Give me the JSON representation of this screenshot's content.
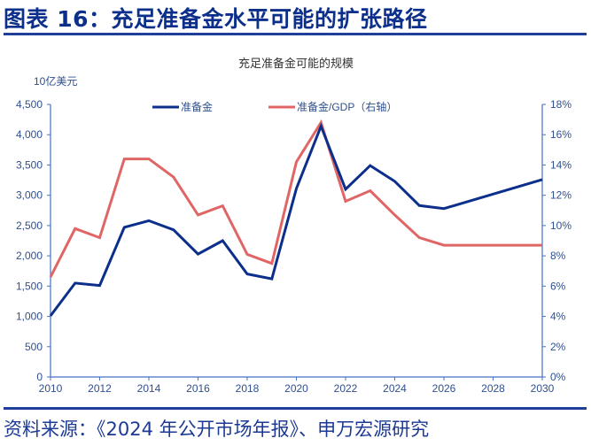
{
  "figure": {
    "title": "图表 16：充足准备金水平可能的扩张路径",
    "source": "资料来源：《2024 年公开市场年报》、申万宏源研究"
  },
  "colors": {
    "title": "#0b2f8a",
    "rule": "#1f3f9a",
    "axis": "#4472c4",
    "tick_text": "#2f4f8f",
    "series_reserves": "#0b2f8a",
    "series_ratio": "#e06666"
  },
  "chart_data": {
    "type": "line",
    "title": "充足准备金可能的规模",
    "ylabel_left": "10亿美元",
    "ylabel_right": "",
    "xlabel": "",
    "x": [
      2010,
      2011,
      2012,
      2013,
      2014,
      2015,
      2016,
      2017,
      2018,
      2019,
      2020,
      2021,
      2022,
      2023,
      2024,
      2025,
      2026,
      2030
    ],
    "series": [
      {
        "name": "准备金",
        "axis": "left",
        "values": [
          1010,
          1550,
          1510,
          2470,
          2580,
          2430,
          2030,
          2250,
          1700,
          1620,
          3110,
          4140,
          3100,
          3490,
          3230,
          2830,
          2780,
          3260
        ]
      },
      {
        "name": "准备金/GDP（右轴）",
        "axis": "right",
        "values": [
          6.6,
          9.8,
          9.2,
          14.4,
          14.4,
          13.2,
          10.7,
          11.3,
          8.1,
          7.5,
          14.2,
          16.8,
          11.6,
          12.3,
          10.7,
          9.2,
          8.7,
          8.7
        ]
      }
    ],
    "x_ticks": [
      "2010",
      "2012",
      "2014",
      "2016",
      "2018",
      "2020",
      "2022",
      "2024",
      "2026",
      "2028",
      "2030"
    ],
    "y_left_ticks": [
      "0",
      "500",
      "1,000",
      "1,500",
      "2,000",
      "2,500",
      "3,000",
      "3,500",
      "4,000",
      "4,500"
    ],
    "y_right_ticks": [
      "0%",
      "2%",
      "4%",
      "6%",
      "8%",
      "10%",
      "12%",
      "14%",
      "16%",
      "18%"
    ],
    "ylim_left": [
      0,
      4500
    ],
    "ylim_right": [
      0,
      18
    ],
    "xlim": [
      2010,
      2030
    ],
    "grid": false,
    "legend_position": "top-inside"
  }
}
